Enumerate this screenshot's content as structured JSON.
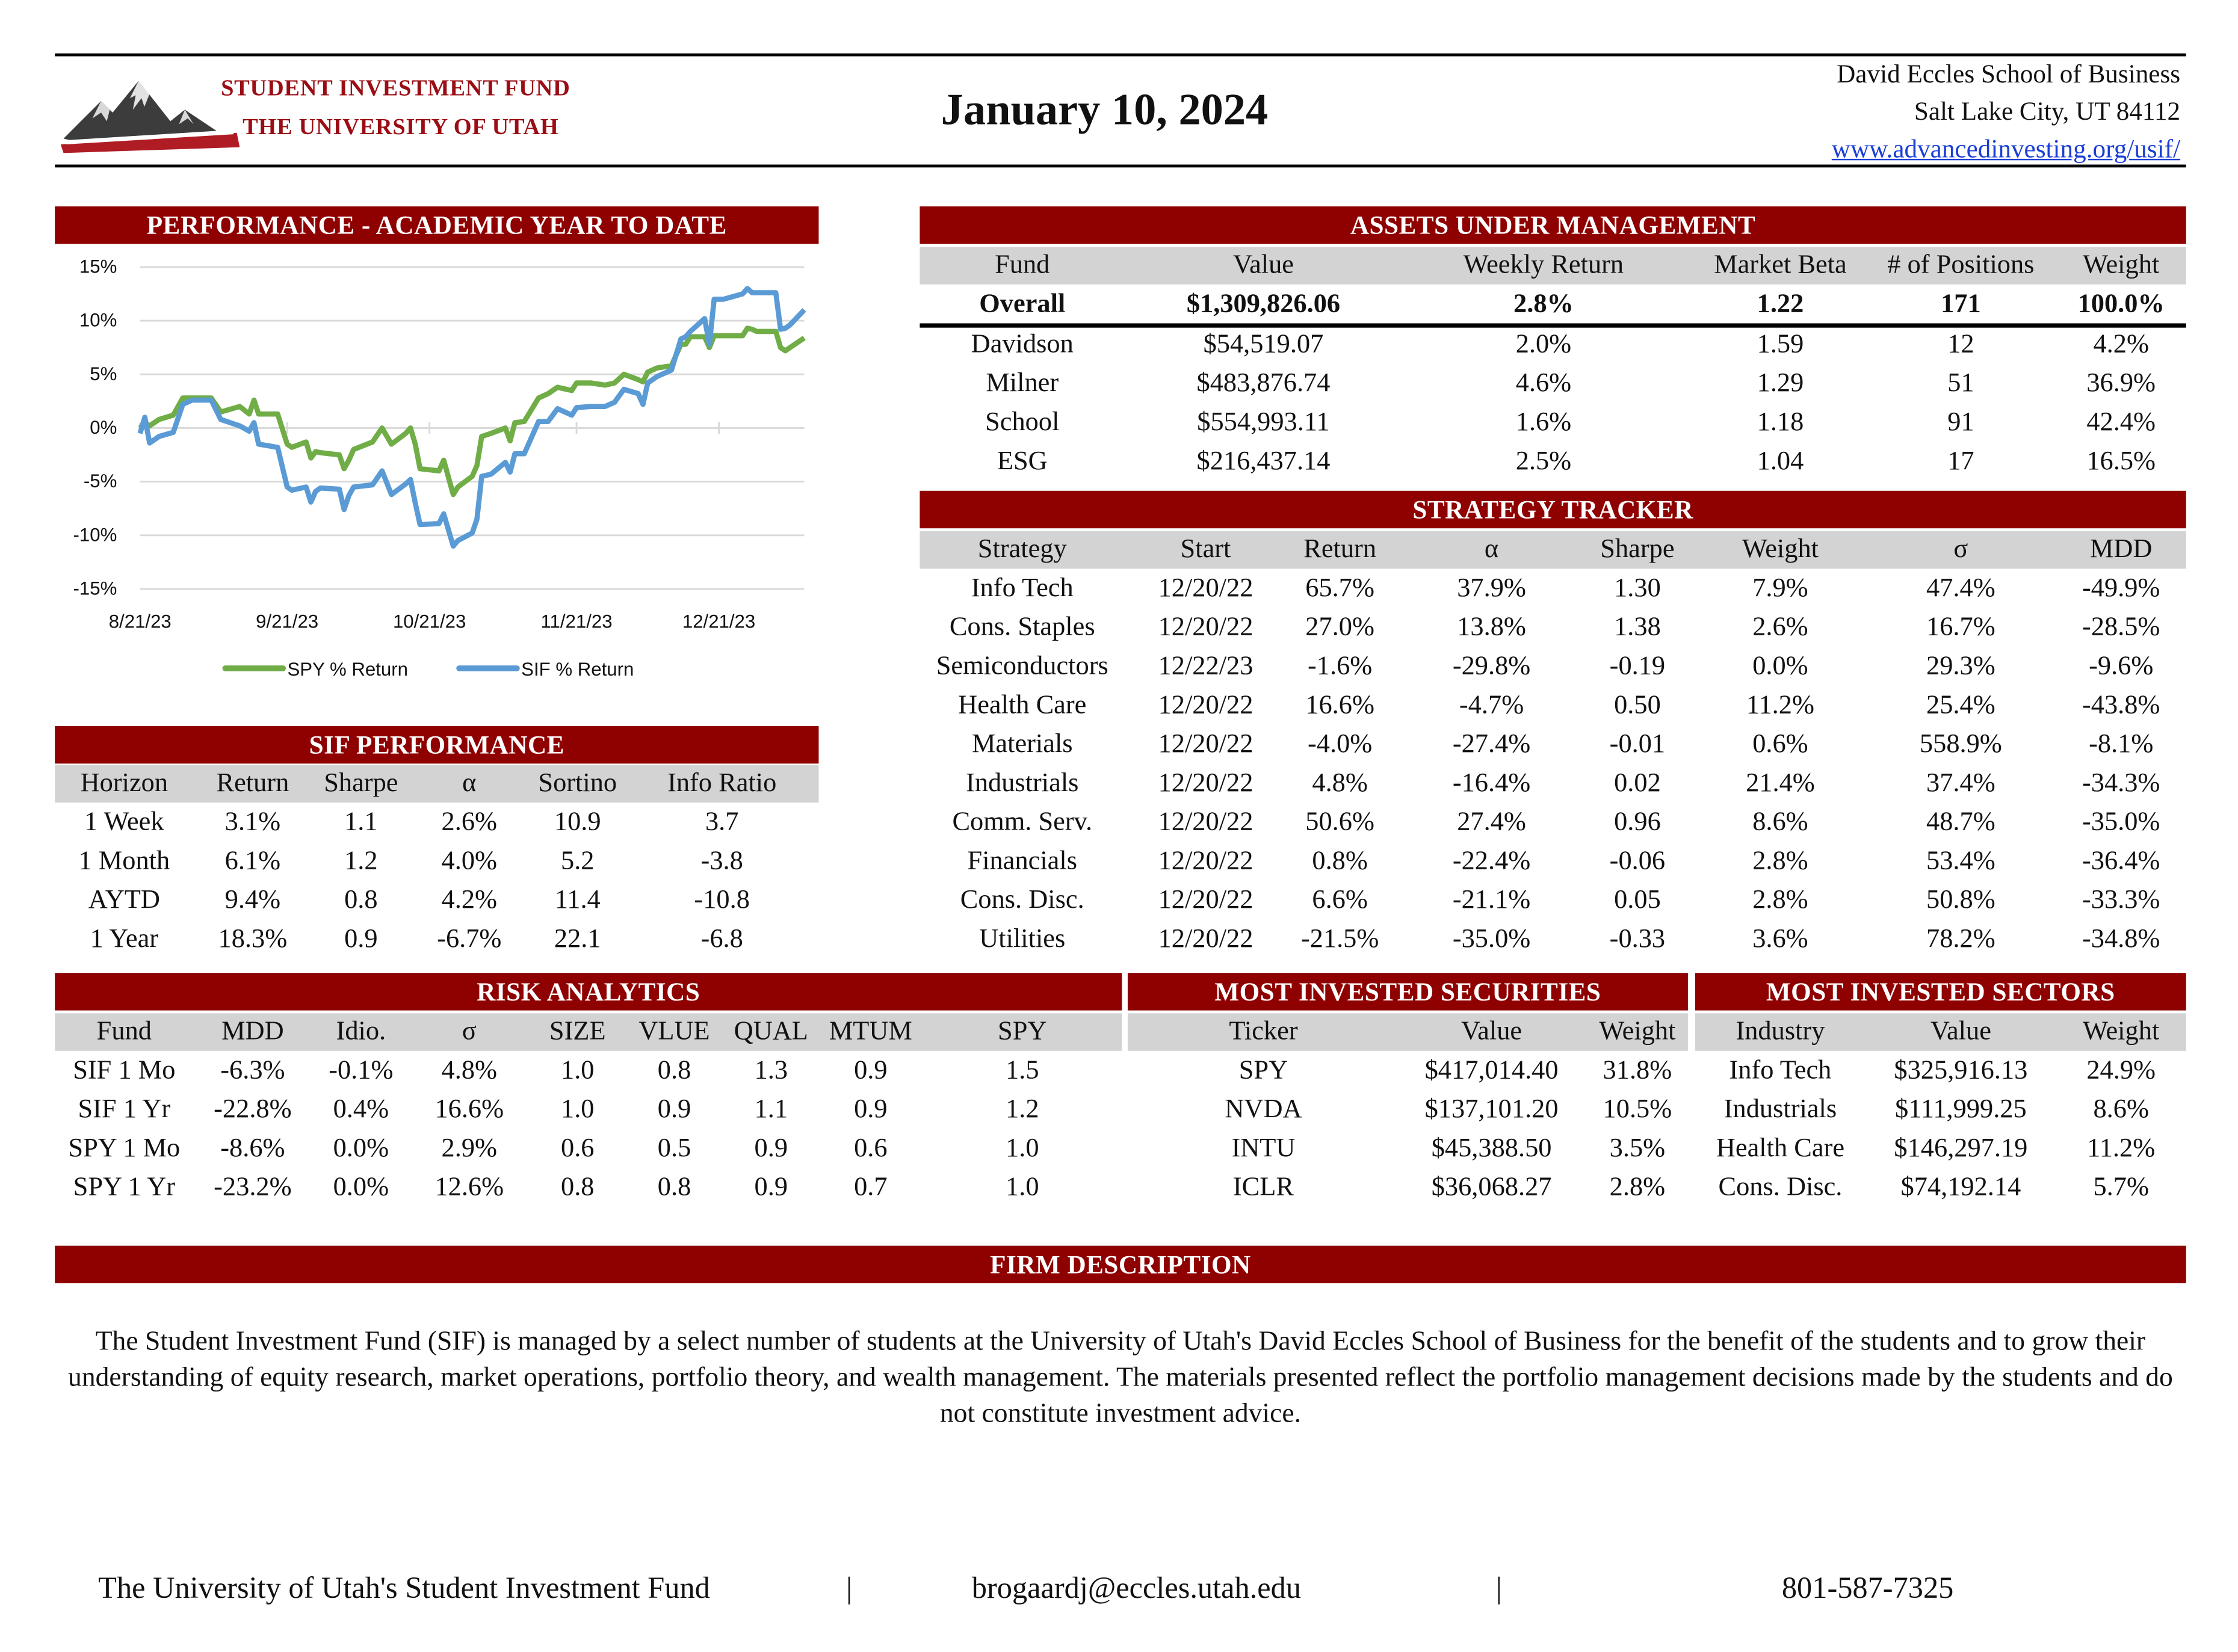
{
  "header": {
    "logo_line1": "STUDENT INVESTMENT FUND",
    "logo_line2": "THE UNIVERSITY OF UTAH",
    "date": "January 10, 2024",
    "address_line1": "David Eccles School of Business",
    "address_line2": "Salt Lake City, UT 84112",
    "website": "www.advancedinvesting.org/usif/"
  },
  "colors": {
    "brand_red": "#8f0000",
    "header_gray": "#d3d3d3",
    "spy_line": "#70ad47",
    "sif_line": "#5b9bd5"
  },
  "performance": {
    "title": "PERFORMANCE - ACADEMIC YEAR TO DATE"
  },
  "chart_data": {
    "type": "line",
    "ylim": [
      -15,
      15
    ],
    "yticks": [
      "15%",
      "10%",
      "5%",
      "0%",
      "-5%",
      "-10%",
      "-15%"
    ],
    "ytick_values": [
      15,
      10,
      5,
      0,
      -5,
      -10,
      -15
    ],
    "xticks": [
      "8/21/23",
      "9/21/23",
      "10/21/23",
      "11/21/23",
      "12/21/23"
    ],
    "grid": true,
    "legend": "bottom",
    "x": [
      "2023-08-21",
      "2023-08-22",
      "2023-08-23",
      "2023-08-25",
      "2023-08-28",
      "2023-08-30",
      "2023-09-01",
      "2023-09-05",
      "2023-09-07",
      "2023-09-11",
      "2023-09-13",
      "2023-09-14",
      "2023-09-15",
      "2023-09-19",
      "2023-09-21",
      "2023-09-22",
      "2023-09-25",
      "2023-09-26",
      "2023-09-27",
      "2023-09-28",
      "2023-10-02",
      "2023-10-03",
      "2023-10-04",
      "2023-10-05",
      "2023-10-09",
      "2023-10-11",
      "2023-10-13",
      "2023-10-16",
      "2023-10-17",
      "2023-10-18",
      "2023-10-19",
      "2023-10-23",
      "2023-10-24",
      "2023-10-26",
      "2023-10-27",
      "2023-10-30",
      "2023-10-31",
      "2023-11-01",
      "2023-11-03",
      "2023-11-06",
      "2023-11-07",
      "2023-11-08",
      "2023-11-10",
      "2023-11-13",
      "2023-11-15",
      "2023-11-17",
      "2023-11-20",
      "2023-11-21",
      "2023-11-24",
      "2023-11-27",
      "2023-11-29",
      "2023-12-01",
      "2023-12-04",
      "2023-12-05",
      "2023-12-06",
      "2023-12-08",
      "2023-12-11",
      "2023-12-13",
      "2023-12-14",
      "2023-12-15",
      "2023-12-18",
      "2023-12-19",
      "2023-12-20",
      "2023-12-22",
      "2023-12-26",
      "2023-12-27",
      "2023-12-28",
      "2023-12-29",
      "2024-01-02",
      "2024-01-03",
      "2024-01-04",
      "2024-01-05",
      "2024-01-08"
    ],
    "series": [
      {
        "name": "SPY % Return",
        "values": [
          0,
          0.5,
          0.2,
          0.8,
          1.2,
          2.8,
          2.8,
          2.8,
          1.5,
          2.0,
          1.3,
          2.6,
          1.3,
          1.3,
          -1.5,
          -1.8,
          -1.3,
          -2.8,
          -2.2,
          -2.3,
          -2.5,
          -3.8,
          -3.0,
          -2.0,
          -1.3,
          0.0,
          -1.5,
          -0.5,
          0.0,
          -1.5,
          -3.8,
          -4.0,
          -3.0,
          -6.2,
          -5.5,
          -4.5,
          -3.5,
          -0.8,
          -0.5,
          0.0,
          -1.2,
          0.5,
          0.6,
          2.8,
          3.2,
          3.8,
          3.5,
          4.2,
          4.2,
          4.0,
          4.2,
          5.0,
          4.5,
          4.3,
          5.2,
          5.6,
          5.8,
          7.8,
          7.8,
          8.5,
          8.5,
          7.5,
          8.6,
          8.6,
          8.6,
          9.3,
          9.2,
          9.0,
          9.0,
          7.5,
          7.2,
          7.5,
          8.4
        ]
      },
      {
        "name": "SIF % Return",
        "values": [
          -0.5,
          1.0,
          -1.4,
          -0.8,
          -0.4,
          2.2,
          2.6,
          2.6,
          0.8,
          0.2,
          -0.3,
          0.5,
          -1.5,
          -1.8,
          -5.5,
          -5.8,
          -5.5,
          -6.9,
          -5.9,
          -5.6,
          -5.7,
          -7.6,
          -6.3,
          -5.5,
          -5.3,
          -4.0,
          -6.2,
          -5.2,
          -4.8,
          -7.0,
          -9.0,
          -8.9,
          -8.0,
          -11.0,
          -10.5,
          -9.8,
          -8.5,
          -4.5,
          -4.3,
          -3.2,
          -4.1,
          -2.4,
          -2.4,
          0.6,
          0.6,
          1.8,
          1.2,
          1.9,
          2.0,
          2.0,
          2.4,
          3.6,
          3.2,
          2.2,
          4.2,
          4.8,
          5.4,
          8.3,
          8.5,
          9.0,
          10.2,
          7.8,
          12.0,
          12.0,
          12.5,
          13.0,
          12.6,
          12.6,
          12.6,
          9.2,
          9.3,
          9.6,
          11.0
        ]
      }
    ]
  },
  "sif_performance": {
    "title": "SIF PERFORMANCE",
    "columns": [
      "Horizon",
      "Return",
      "Sharpe",
      "α",
      "Sortino",
      "Info Ratio"
    ],
    "rows": [
      [
        "1 Week",
        "3.1%",
        "1.1",
        "2.6%",
        "10.9",
        "3.7"
      ],
      [
        "1 Month",
        "6.1%",
        "1.2",
        "4.0%",
        "5.2",
        "-3.8"
      ],
      [
        "AYTD",
        "9.4%",
        "0.8",
        "4.2%",
        "11.4",
        "-10.8"
      ],
      [
        "1 Year",
        "18.3%",
        "0.9",
        "-6.7%",
        "22.1",
        "-6.8"
      ]
    ]
  },
  "aum": {
    "title": "ASSETS UNDER MANAGEMENT",
    "columns": [
      "Fund",
      "Value",
      "Weekly Return",
      "Market Beta",
      "# of Positions",
      "Weight"
    ],
    "overall": [
      [
        "Overall",
        "$1,309,826.06",
        "2.8%",
        "1.22",
        "171",
        "100.0%"
      ]
    ],
    "rows": [
      [
        "Davidson",
        "$54,519.07",
        "2.0%",
        "1.59",
        "12",
        "4.2%"
      ],
      [
        "Milner",
        "$483,876.74",
        "4.6%",
        "1.29",
        "51",
        "36.9%"
      ],
      [
        "School",
        "$554,993.11",
        "1.6%",
        "1.18",
        "91",
        "42.4%"
      ],
      [
        "ESG",
        "$216,437.14",
        "2.5%",
        "1.04",
        "17",
        "16.5%"
      ]
    ]
  },
  "strategy": {
    "title": "STRATEGY TRACKER",
    "columns": [
      "Strategy",
      "Start",
      "Return",
      "α",
      "Sharpe",
      "Weight",
      "σ",
      "MDD"
    ],
    "rows": [
      [
        "Info Tech",
        "12/20/22",
        "65.7%",
        "37.9%",
        "1.30",
        "7.9%",
        "47.4%",
        "-49.9%"
      ],
      [
        "Cons. Staples",
        "12/20/22",
        "27.0%",
        "13.8%",
        "1.38",
        "2.6%",
        "16.7%",
        "-28.5%"
      ],
      [
        "Semiconductors",
        "12/22/23",
        "-1.6%",
        "-29.8%",
        "-0.19",
        "0.0%",
        "29.3%",
        "-9.6%"
      ],
      [
        "Health Care",
        "12/20/22",
        "16.6%",
        "-4.7%",
        "0.50",
        "11.2%",
        "25.4%",
        "-43.8%"
      ],
      [
        "Materials",
        "12/20/22",
        "-4.0%",
        "-27.4%",
        "-0.01",
        "0.6%",
        "558.9%",
        "-8.1%"
      ],
      [
        "Industrials",
        "12/20/22",
        "4.8%",
        "-16.4%",
        "0.02",
        "21.4%",
        "37.4%",
        "-34.3%"
      ],
      [
        "Comm. Serv.",
        "12/20/22",
        "50.6%",
        "27.4%",
        "0.96",
        "8.6%",
        "48.7%",
        "-35.0%"
      ],
      [
        "Financials",
        "12/20/22",
        "0.8%",
        "-22.4%",
        "-0.06",
        "2.8%",
        "53.4%",
        "-36.4%"
      ],
      [
        "Cons. Disc.",
        "12/20/22",
        "6.6%",
        "-21.1%",
        "0.05",
        "2.8%",
        "50.8%",
        "-33.3%"
      ],
      [
        "Utilities",
        "12/20/22",
        "-21.5%",
        "-35.0%",
        "-0.33",
        "3.6%",
        "78.2%",
        "-34.8%"
      ]
    ]
  },
  "risk": {
    "title": "RISK ANALYTICS",
    "columns": [
      "Fund",
      "MDD",
      "Idio.",
      "σ",
      "SIZE",
      "VLUE",
      "QUAL",
      "MTUM",
      "SPY"
    ],
    "rows": [
      [
        "SIF 1 Mo",
        "-6.3%",
        "-0.1%",
        "4.8%",
        "1.0",
        "0.8",
        "1.3",
        "0.9",
        "1.5"
      ],
      [
        "SIF 1 Yr",
        "-22.8%",
        "0.4%",
        "16.6%",
        "1.0",
        "0.9",
        "1.1",
        "0.9",
        "1.2"
      ],
      [
        "SPY 1 Mo",
        "-8.6%",
        "0.0%",
        "2.9%",
        "0.6",
        "0.5",
        "0.9",
        "0.6",
        "1.0"
      ],
      [
        "SPY 1 Yr",
        "-23.2%",
        "0.0%",
        "12.6%",
        "0.8",
        "0.8",
        "0.9",
        "0.7",
        "1.0"
      ]
    ]
  },
  "securities": {
    "title": "MOST INVESTED SECURITIES",
    "columns": [
      "Ticker",
      "Value",
      "Weight"
    ],
    "rows": [
      [
        "SPY",
        "$417,014.40",
        "31.8%"
      ],
      [
        "NVDA",
        "$137,101.20",
        "10.5%"
      ],
      [
        "INTU",
        "$45,388.50",
        "3.5%"
      ],
      [
        "ICLR",
        "$36,068.27",
        "2.8%"
      ]
    ]
  },
  "sectors": {
    "title": "MOST INVESTED SECTORS",
    "columns": [
      "Industry",
      "Value",
      "Weight"
    ],
    "rows": [
      [
        "Info Tech",
        "$325,916.13",
        "24.9%"
      ],
      [
        "Industrials",
        "$111,999.25",
        "8.6%"
      ],
      [
        "Health Care",
        "$146,297.19",
        "11.2%"
      ],
      [
        "Cons. Disc.",
        "$74,192.14",
        "5.7%"
      ]
    ]
  },
  "firm": {
    "title": "FIRM DESCRIPTION",
    "text": "The Student Investment Fund (SIF) is managed by a select number of students at the University of Utah's David Eccles School of Business for the benefit of the students and to grow their understanding of equity research, market operations, portfolio theory, and wealth management. The materials presented reflect the portfolio management decisions made by the students and do not constitute investment advice."
  },
  "footer": {
    "name": "The University of Utah's Student Investment Fund",
    "separator": "|",
    "email": "brogaardj@eccles.utah.edu",
    "phone": "801-587-7325"
  }
}
